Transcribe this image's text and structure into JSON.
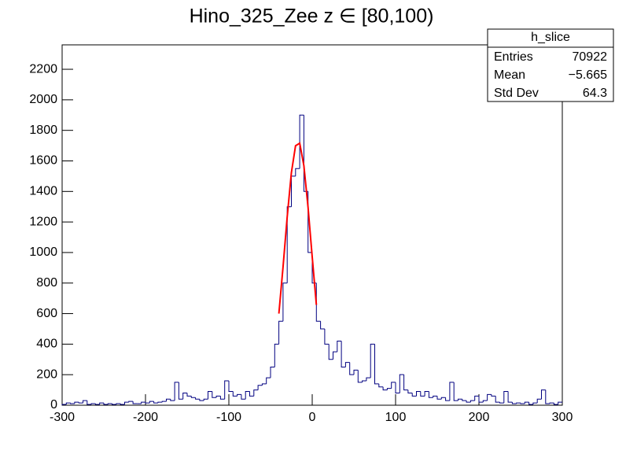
{
  "chart_data": [
    {
      "type": "histogram",
      "title": "Hino_325_Zee z  ∈ [80,100)",
      "color": "#000080",
      "bins": [
        -300,
        -295,
        -290,
        -285,
        -280,
        -275,
        -270,
        -265,
        -260,
        -255,
        -250,
        -245,
        -240,
        -235,
        -230,
        -225,
        -220,
        -215,
        -210,
        -205,
        -200,
        -195,
        -190,
        -185,
        -180,
        -175,
        -170,
        -165,
        -160,
        -155,
        -150,
        -145,
        -140,
        -135,
        -130,
        -125,
        -120,
        -115,
        -110,
        -105,
        -100,
        -95,
        -90,
        -85,
        -80,
        -75,
        -70,
        -65,
        -60,
        -55,
        -50,
        -45,
        -40,
        -35,
        -30,
        -25,
        -20,
        -15,
        -10,
        -5,
        0,
        5,
        10,
        15,
        20,
        25,
        30,
        35,
        40,
        45,
        50,
        55,
        60,
        65,
        70,
        75,
        80,
        85,
        90,
        95,
        100,
        105,
        110,
        115,
        120,
        125,
        130,
        135,
        140,
        145,
        150,
        155,
        160,
        165,
        170,
        175,
        180,
        185,
        190,
        195,
        200,
        205,
        210,
        215,
        220,
        225,
        230,
        235,
        240,
        245,
        250,
        255,
        260,
        265,
        270,
        275,
        280,
        285,
        290,
        295,
        300
      ],
      "values": [
        5,
        15,
        10,
        20,
        15,
        30,
        5,
        10,
        5,
        15,
        5,
        10,
        5,
        10,
        5,
        20,
        25,
        10,
        10,
        20,
        15,
        25,
        15,
        20,
        25,
        40,
        30,
        150,
        40,
        80,
        60,
        50,
        40,
        30,
        40,
        90,
        50,
        60,
        40,
        160,
        90,
        60,
        70,
        40,
        90,
        60,
        100,
        130,
        140,
        180,
        250,
        400,
        550,
        800,
        1300,
        1500,
        1550,
        1900,
        1400,
        1000,
        800,
        550,
        500,
        400,
        300,
        350,
        420,
        250,
        280,
        200,
        230,
        150,
        160,
        180,
        400,
        140,
        120,
        100,
        110,
        150,
        80,
        200,
        100,
        80,
        60,
        90,
        60,
        90,
        50,
        60,
        40,
        50,
        30,
        150,
        30,
        40,
        30,
        20,
        30,
        60,
        20,
        30,
        70,
        60,
        20,
        15,
        90,
        20,
        10,
        15,
        10,
        20,
        5,
        15,
        40,
        100,
        10,
        15,
        5,
        20
      ],
      "xlim": [
        -300,
        300
      ],
      "xticks": [
        -300,
        -200,
        -100,
        0,
        100,
        200,
        300
      ],
      "ylim": [
        0,
        2360
      ],
      "yticks": [
        0,
        200,
        400,
        600,
        800,
        1000,
        1200,
        1400,
        1600,
        1800,
        2000,
        2200
      ]
    },
    {
      "type": "line",
      "color": "#ff0000",
      "x": [
        -40,
        -35,
        -30,
        -25,
        -20,
        -15,
        -10,
        -5,
        0,
        5
      ],
      "values": [
        600,
        905,
        1234,
        1522,
        1699,
        1716,
        1569,
        1297,
        971,
        657
      ]
    }
  ],
  "stats": {
    "title": "h_slice",
    "rows": [
      [
        "Entries",
        "70922"
      ],
      [
        "Mean",
        "−5.665"
      ],
      [
        "Std Dev",
        "64.3"
      ]
    ]
  }
}
